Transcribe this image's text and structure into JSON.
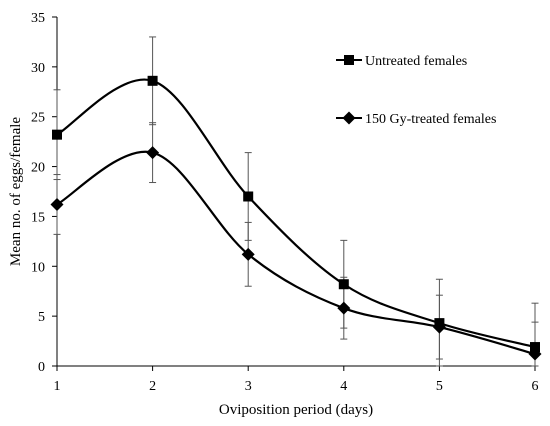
{
  "chart_data": {
    "type": "line",
    "title": "",
    "xlabel": "Oviposition period (days)",
    "ylabel": "Mean no. of eggs/female",
    "x": [
      1,
      2,
      3,
      4,
      5,
      6
    ],
    "xlim": [
      1,
      6
    ],
    "ylim": [
      0,
      35
    ],
    "xticks": [
      "1",
      "2",
      "3",
      "4",
      "5",
      "6"
    ],
    "yticks": [
      "0",
      "5",
      "10",
      "15",
      "20",
      "25",
      "30",
      "35"
    ],
    "grid": false,
    "legend_position": "top-right",
    "series": [
      {
        "name": "Untreated females",
        "marker": "square",
        "values": [
          23.2,
          28.6,
          17.0,
          8.2,
          4.3,
          1.9
        ],
        "error": [
          4.5,
          4.4,
          4.4,
          4.4,
          4.4,
          4.4
        ]
      },
      {
        "name": "150 Gy-treated females",
        "marker": "diamond",
        "values": [
          16.2,
          21.4,
          11.2,
          5.8,
          3.9,
          1.2
        ],
        "error": [
          3.0,
          3.0,
          3.2,
          3.1,
          3.2,
          3.2
        ]
      }
    ],
    "colors": {
      "line": "#000000",
      "axis": "#000000"
    }
  }
}
